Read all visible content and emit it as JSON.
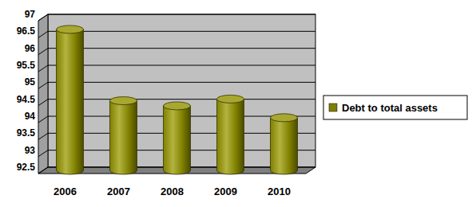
{
  "chart_data": {
    "type": "bar",
    "categories": [
      "2006",
      "2007",
      "2008",
      "2009",
      "2010"
    ],
    "series": [
      {
        "name": "Debt to total assets",
        "color": "#808000",
        "values": [
          96.65,
          94.55,
          94.4,
          94.6,
          94.05
        ]
      }
    ],
    "ylim": [
      92.5,
      97
    ],
    "yticks": [
      92.5,
      93,
      93.5,
      94,
      94.5,
      95,
      95.5,
      96,
      96.5,
      97
    ],
    "grid": true,
    "legend": "right"
  }
}
